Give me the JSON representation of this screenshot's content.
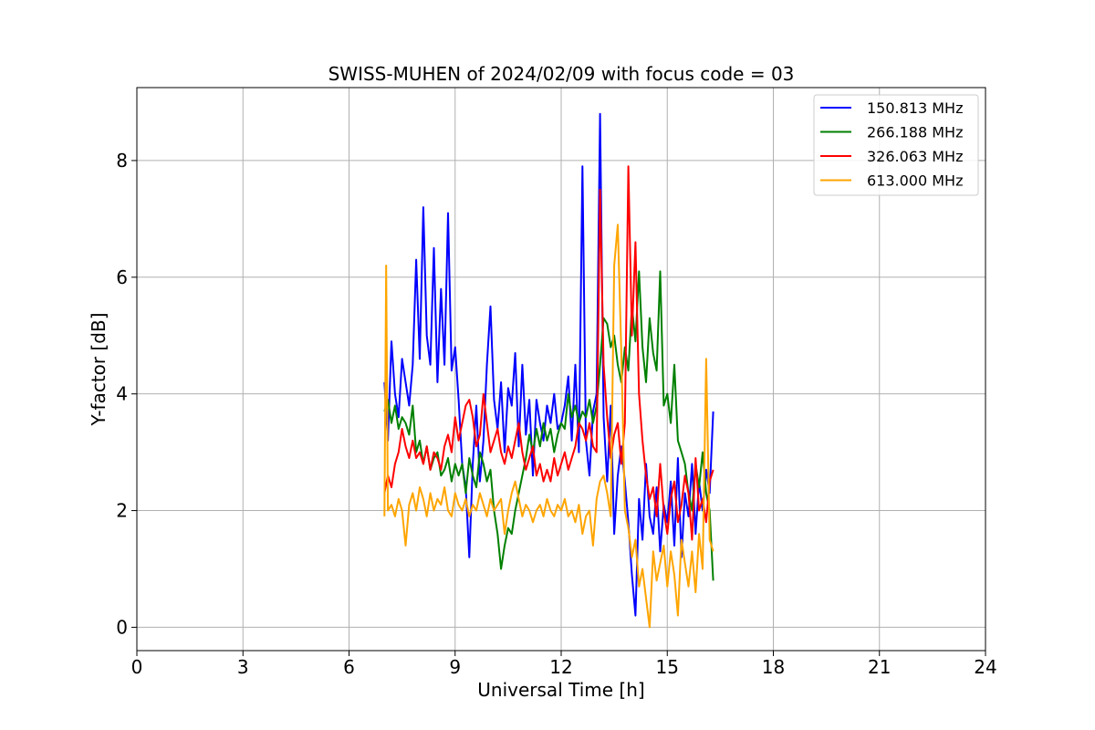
{
  "chart_data": {
    "type": "line",
    "title": "SWISS-MUHEN of 2024/02/09 with focus code = 03",
    "xlabel": "Universal Time [h]",
    "ylabel": "Y-factor [dB]",
    "xlim": [
      0,
      24
    ],
    "ylim": [
      -0.4,
      9.25
    ],
    "xticks": [
      0,
      3,
      6,
      9,
      12,
      15,
      18,
      21,
      24
    ],
    "xtick_labels": [
      "0",
      "3",
      "6",
      "9",
      "12",
      "15",
      "18",
      "21",
      "24"
    ],
    "yticks": [
      0,
      2,
      4,
      6,
      8
    ],
    "ytick_labels": [
      "0",
      "2",
      "4",
      "6",
      "8"
    ],
    "grid": true,
    "legend_position": "top-right",
    "series": [
      {
        "name": "150.813 MHz",
        "color": "#0000ff",
        "x": [
          7.0,
          7.1,
          7.2,
          7.3,
          7.4,
          7.5,
          7.6,
          7.7,
          7.8,
          7.9,
          8.0,
          8.1,
          8.2,
          8.3,
          8.4,
          8.5,
          8.6,
          8.7,
          8.8,
          8.9,
          9.0,
          9.1,
          9.2,
          9.3,
          9.4,
          9.5,
          9.6,
          9.7,
          9.8,
          9.9,
          10.0,
          10.1,
          10.2,
          10.3,
          10.4,
          10.5,
          10.6,
          10.7,
          10.8,
          10.9,
          11.0,
          11.1,
          11.2,
          11.3,
          11.4,
          11.5,
          11.6,
          11.7,
          11.8,
          11.9,
          12.0,
          12.1,
          12.2,
          12.3,
          12.4,
          12.5,
          12.6,
          12.7,
          12.8,
          12.9,
          13.0,
          13.1,
          13.2,
          13.3,
          13.4,
          13.5,
          13.6,
          13.7,
          13.8,
          13.9,
          14.0,
          14.1,
          14.2,
          14.3,
          14.4,
          14.5,
          14.6,
          14.7,
          14.8,
          14.9,
          15.0,
          15.1,
          15.2,
          15.3,
          15.4,
          15.5,
          15.6,
          15.7,
          15.8,
          15.9,
          16.0,
          16.1,
          16.2,
          16.3
        ],
        "y": [
          4.2,
          3.2,
          4.9,
          4.0,
          3.6,
          4.6,
          4.2,
          3.8,
          4.5,
          6.3,
          4.6,
          7.2,
          5.0,
          4.5,
          6.5,
          4.2,
          5.8,
          4.5,
          7.1,
          4.4,
          4.8,
          3.9,
          2.8,
          2.4,
          1.2,
          2.8,
          3.8,
          2.5,
          3.2,
          4.5,
          5.5,
          3.9,
          3.4,
          4.2,
          3.0,
          4.1,
          3.8,
          4.7,
          3.1,
          4.5,
          3.3,
          3.9,
          2.6,
          3.9,
          3.5,
          3.2,
          3.8,
          3.5,
          4.0,
          3.4,
          3.5,
          3.8,
          4.3,
          3.2,
          4.5,
          3.0,
          7.9,
          3.2,
          2.6,
          3.7,
          4.0,
          8.8,
          3.6,
          2.5,
          3.8,
          1.6,
          2.6,
          3.1,
          2.5,
          1.8,
          0.9,
          0.2,
          2.2,
          1.5,
          2.8,
          1.9,
          1.6,
          2.4,
          1.3,
          2.1,
          1.8,
          2.5,
          1.4,
          2.9,
          1.2,
          2.3,
          1.9,
          2.8,
          1.6,
          2.5,
          2.0,
          2.7,
          2.3,
          3.7
        ]
      },
      {
        "name": "266.188 MHz",
        "color": "#008000",
        "x": [
          7.0,
          7.1,
          7.2,
          7.3,
          7.4,
          7.5,
          7.6,
          7.7,
          7.8,
          7.9,
          8.0,
          8.1,
          8.2,
          8.3,
          8.4,
          8.5,
          8.6,
          8.7,
          8.8,
          8.9,
          9.0,
          9.1,
          9.2,
          9.3,
          9.4,
          9.5,
          9.6,
          9.7,
          9.8,
          9.9,
          10.0,
          10.1,
          10.2,
          10.3,
          10.4,
          10.5,
          10.6,
          10.7,
          10.8,
          10.9,
          11.0,
          11.1,
          11.2,
          11.3,
          11.4,
          11.5,
          11.6,
          11.7,
          11.8,
          11.9,
          12.0,
          12.1,
          12.2,
          12.3,
          12.4,
          12.5,
          12.6,
          12.7,
          12.8,
          12.9,
          13.0,
          13.1,
          13.2,
          13.3,
          13.4,
          13.5,
          13.6,
          13.7,
          13.8,
          13.9,
          14.0,
          14.1,
          14.2,
          14.3,
          14.4,
          14.5,
          14.6,
          14.7,
          14.8,
          14.9,
          15.0,
          15.1,
          15.2,
          15.3,
          15.4,
          15.5,
          15.6,
          15.7,
          15.8,
          15.9,
          16.0,
          16.1,
          16.2,
          16.3
        ],
        "y": [
          3.7,
          3.9,
          3.5,
          3.8,
          3.4,
          3.6,
          3.5,
          3.3,
          3.8,
          3.0,
          3.2,
          2.8,
          3.1,
          2.7,
          2.9,
          3.0,
          2.6,
          2.7,
          2.9,
          2.5,
          2.8,
          2.6,
          2.8,
          2.3,
          2.9,
          2.6,
          2.4,
          3.0,
          2.8,
          2.5,
          2.7,
          2.0,
          1.6,
          1.0,
          1.4,
          1.7,
          1.6,
          2.0,
          2.3,
          2.6,
          2.9,
          3.3,
          3.0,
          3.4,
          3.1,
          3.5,
          3.2,
          3.4,
          3.0,
          3.3,
          3.5,
          3.4,
          4.0,
          3.6,
          3.8,
          3.5,
          3.7,
          3.6,
          3.9,
          3.5,
          3.8,
          4.5,
          5.3,
          5.2,
          4.8,
          5.0,
          4.5,
          4.2,
          4.8,
          4.4,
          5.5,
          4.9,
          6.1,
          4.8,
          4.2,
          5.3,
          4.7,
          4.4,
          6.1,
          3.8,
          4.0,
          3.5,
          4.5,
          3.2,
          3.0,
          2.8,
          2.3,
          2.0,
          2.8,
          2.4,
          3.0,
          2.3,
          2.0,
          0.8
        ]
      },
      {
        "name": "326.063 MHz",
        "color": "#ff0000",
        "x": [
          7.0,
          7.1,
          7.2,
          7.3,
          7.4,
          7.5,
          7.6,
          7.7,
          7.8,
          7.9,
          8.0,
          8.1,
          8.2,
          8.3,
          8.4,
          8.5,
          8.6,
          8.7,
          8.8,
          8.9,
          9.0,
          9.1,
          9.2,
          9.3,
          9.4,
          9.5,
          9.6,
          9.7,
          9.8,
          9.9,
          10.0,
          10.1,
          10.2,
          10.3,
          10.4,
          10.5,
          10.6,
          10.7,
          10.8,
          10.9,
          11.0,
          11.1,
          11.2,
          11.3,
          11.4,
          11.5,
          11.6,
          11.7,
          11.8,
          11.9,
          12.0,
          12.1,
          12.2,
          12.3,
          12.4,
          12.5,
          12.6,
          12.7,
          12.8,
          12.9,
          13.0,
          13.1,
          13.2,
          13.3,
          13.4,
          13.5,
          13.6,
          13.7,
          13.8,
          13.9,
          14.0,
          14.1,
          14.2,
          14.3,
          14.4,
          14.5,
          14.6,
          14.7,
          14.8,
          14.9,
          15.0,
          15.1,
          15.2,
          15.3,
          15.4,
          15.5,
          15.6,
          15.7,
          15.8,
          15.9,
          16.0,
          16.1,
          16.2,
          16.3
        ],
        "y": [
          2.3,
          2.6,
          2.4,
          2.8,
          3.0,
          3.4,
          3.1,
          2.9,
          3.2,
          2.9,
          3.0,
          2.8,
          3.1,
          2.7,
          3.0,
          2.9,
          2.7,
          3.1,
          3.3,
          3.0,
          3.6,
          3.2,
          3.5,
          3.8,
          3.9,
          3.6,
          3.1,
          3.3,
          4.0,
          3.5,
          3.0,
          3.2,
          3.4,
          3.0,
          2.8,
          3.1,
          2.9,
          3.2,
          3.5,
          3.0,
          2.7,
          2.9,
          3.1,
          2.6,
          2.8,
          2.5,
          2.7,
          2.5,
          2.9,
          2.6,
          2.8,
          3.0,
          2.7,
          2.9,
          3.1,
          3.5,
          3.4,
          3.2,
          3.5,
          3.1,
          3.0,
          7.5,
          4.5,
          3.6,
          2.9,
          3.3,
          3.5,
          2.8,
          3.5,
          7.9,
          5.0,
          6.6,
          4.0,
          3.2,
          2.6,
          2.2,
          2.4,
          1.9,
          2.8,
          2.0,
          1.6,
          2.2,
          2.5,
          1.8,
          2.1,
          2.6,
          2.3,
          1.5,
          2.9,
          2.0,
          2.2,
          1.8,
          2.5,
          2.7
        ]
      },
      {
        "name": "613.000 MHz",
        "color": "#ffa500",
        "x": [
          7.0,
          7.05,
          7.1,
          7.2,
          7.3,
          7.4,
          7.5,
          7.6,
          7.7,
          7.8,
          7.9,
          8.0,
          8.1,
          8.2,
          8.3,
          8.4,
          8.5,
          8.6,
          8.7,
          8.8,
          8.9,
          9.0,
          9.1,
          9.2,
          9.3,
          9.4,
          9.5,
          9.6,
          9.7,
          9.8,
          9.9,
          10.0,
          10.1,
          10.2,
          10.3,
          10.4,
          10.5,
          10.6,
          10.7,
          10.8,
          10.9,
          11.0,
          11.1,
          11.2,
          11.3,
          11.4,
          11.5,
          11.6,
          11.7,
          11.8,
          11.9,
          12.0,
          12.1,
          12.2,
          12.3,
          12.4,
          12.5,
          12.6,
          12.7,
          12.8,
          12.9,
          13.0,
          13.1,
          13.2,
          13.3,
          13.4,
          13.5,
          13.6,
          13.7,
          13.8,
          13.9,
          14.0,
          14.1,
          14.2,
          14.3,
          14.4,
          14.5,
          14.6,
          14.7,
          14.8,
          14.9,
          15.0,
          15.1,
          15.2,
          15.3,
          15.4,
          15.5,
          15.6,
          15.7,
          15.8,
          15.9,
          16.0,
          16.1,
          16.2,
          16.3
        ],
        "y": [
          1.9,
          6.2,
          2.0,
          2.1,
          1.9,
          2.2,
          2.0,
          1.4,
          2.1,
          2.3,
          2.0,
          2.4,
          2.2,
          1.9,
          2.3,
          2.0,
          2.2,
          2.1,
          2.4,
          2.0,
          1.9,
          2.3,
          2.1,
          2.0,
          2.2,
          1.9,
          2.1,
          2.0,
          2.3,
          2.1,
          1.9,
          2.2,
          2.0,
          2.1,
          2.2,
          1.6,
          2.0,
          2.3,
          2.5,
          2.2,
          1.9,
          2.1,
          2.0,
          1.8,
          2.0,
          2.1,
          1.9,
          2.2,
          2.0,
          1.9,
          2.1,
          2.0,
          2.2,
          1.9,
          2.0,
          1.8,
          2.1,
          1.6,
          1.9,
          2.0,
          1.4,
          2.2,
          2.5,
          2.6,
          2.3,
          1.9,
          6.2,
          6.9,
          4.7,
          2.0,
          1.7,
          1.2,
          1.5,
          0.7,
          1.0,
          0.5,
          0.0,
          1.3,
          0.8,
          1.1,
          1.4,
          0.7,
          1.3,
          0.9,
          0.2,
          1.5,
          1.1,
          0.7,
          1.3,
          0.6,
          1.6,
          1.0,
          4.6,
          1.5,
          1.3
        ]
      }
    ]
  }
}
